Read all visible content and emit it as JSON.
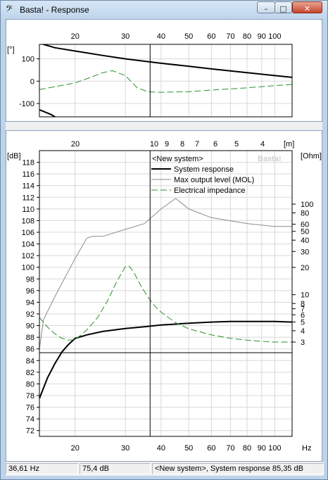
{
  "window": {
    "title": "Basta! - Response",
    "icon": "bass-clef-icon"
  },
  "controls": {
    "minimize": "–",
    "maximize": "□",
    "close": "✕"
  },
  "phase_chart": {
    "ylabel": "[°]",
    "yticks": [
      100,
      0,
      -100
    ],
    "xticks": [
      20,
      30,
      40,
      50,
      60,
      70,
      80,
      90,
      100
    ]
  },
  "main_chart": {
    "ylabel_left": "[dB]",
    "ylabel_right": "[Ohm]",
    "wavelength_label": "[m]",
    "wavelength_ticks": [
      "20",
      "10",
      "9",
      "8",
      "7",
      "6",
      "5",
      "4"
    ],
    "x_unit": "Hz",
    "xticks": [
      20,
      30,
      40,
      50,
      60,
      70,
      80,
      90,
      100
    ],
    "yticks_left": [
      118,
      116,
      114,
      112,
      110,
      108,
      106,
      104,
      102,
      100,
      98,
      96,
      94,
      92,
      90,
      88,
      86,
      84,
      82,
      80,
      78,
      76,
      74,
      72
    ],
    "yticks_right": [
      100,
      80,
      60,
      50,
      40,
      30,
      20,
      10,
      8,
      7,
      6,
      5,
      4,
      3
    ],
    "legend_title": "<New system>",
    "watermark": "Basta!",
    "legend": [
      "System response",
      "Max output level (MOL)",
      "Electrical impedance"
    ]
  },
  "colors": {
    "response": "#000000",
    "mol": "#8c8c8c",
    "impedance": "#2f8f2f",
    "grid": "#d8d8d8"
  },
  "status": {
    "frequency": "36,61 Hz",
    "level": "75,4 dB",
    "info": "<New system>, System response 85,35 dB"
  },
  "chart_data": [
    {
      "type": "line",
      "title": "",
      "ylabel": "[°]",
      "xscale": "log",
      "xlim": [
        15,
        115
      ],
      "ylim": [
        -160,
        165
      ],
      "series": [
        {
          "x": [
            15,
            17,
            20,
            25,
            30,
            40,
            50,
            60,
            80,
            100,
            115
          ],
          "y": [
            170,
            150,
            135,
            115,
            100,
            80,
            67,
            55,
            38,
            25,
            17
          ]
        },
        {
          "x": [
            15,
            17,
            20,
            23,
            25,
            27,
            30,
            33,
            36,
            40,
            50,
            60,
            80,
            100,
            115
          ],
          "y": [
            -38,
            -25,
            -8,
            20,
            38,
            47,
            25,
            -30,
            -48,
            -50,
            -47,
            -40,
            -30,
            -20,
            -15
          ]
        },
        {
          "x": [
            15,
            16.5,
            17.5
          ],
          "y": [
            -128,
            -150,
            -170
          ]
        }
      ]
    },
    {
      "type": "line",
      "title": "",
      "xlabel": "Hz",
      "ylabel": "[dB]",
      "y2label": "[Ohm]",
      "xscale": "log",
      "xlim": [
        15,
        115
      ],
      "ylim": [
        71,
        120
      ],
      "y2scale": "log",
      "crosshair": {
        "x": 36.61,
        "y": 85.35
      },
      "series": [
        {
          "name": "System response",
          "x": [
            15,
            16,
            17,
            18,
            19,
            20,
            22,
            25,
            30,
            35,
            40,
            50,
            60,
            70,
            80,
            90,
            100,
            115
          ],
          "y": [
            77.5,
            81,
            83.5,
            85.5,
            86.8,
            87.8,
            88.4,
            89,
            89.5,
            89.8,
            90.1,
            90.4,
            90.6,
            90.7,
            90.7,
            90.7,
            90.7,
            90.6
          ]
        },
        {
          "name": "Max output level (MOL)",
          "x": [
            15,
            15.5,
            17,
            20,
            22,
            23,
            25,
            30,
            35,
            40,
            45,
            50,
            60,
            80,
            100,
            115
          ],
          "y": [
            86,
            91,
            95,
            101.5,
            105,
            105.3,
            105.3,
            106.5,
            107.5,
            110,
            111.8,
            110,
            108.5,
            107.5,
            107,
            107
          ]
        },
        {
          "name": "Electrical impedance",
          "axis": "right",
          "x": [
            15,
            16,
            17,
            18,
            19,
            20,
            21,
            22,
            24,
            26,
            28,
            30,
            31,
            32,
            34,
            36,
            38,
            40,
            45,
            50,
            60,
            70,
            80,
            90,
            100,
            115
          ],
          "y": [
            5.6,
            4.4,
            3.7,
            3.3,
            3.15,
            3.2,
            3.6,
            4.1,
            5.6,
            8.6,
            14,
            20.5,
            20.5,
            18,
            12.5,
            9.4,
            7.5,
            6.4,
            4.9,
            4.2,
            3.6,
            3.3,
            3.15,
            3.05,
            3,
            3
          ]
        }
      ]
    }
  ]
}
